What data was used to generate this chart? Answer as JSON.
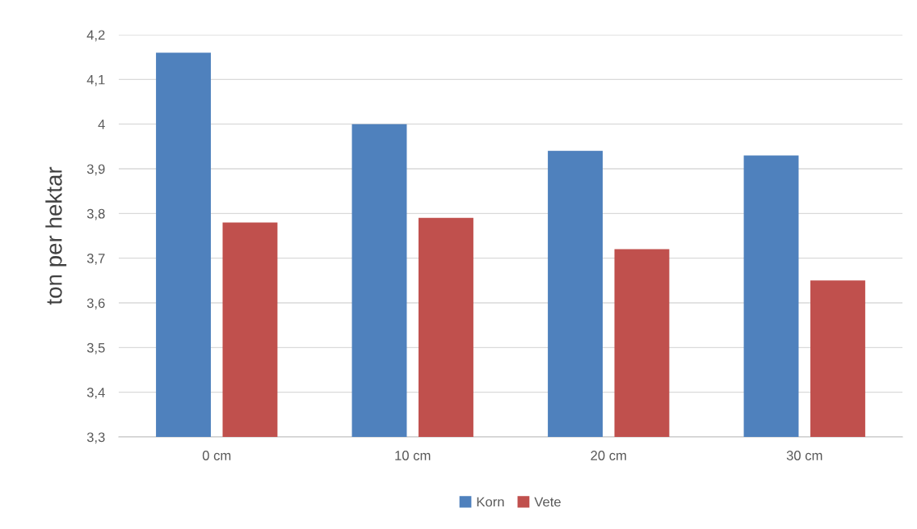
{
  "chart_data": {
    "type": "bar",
    "ylabel": "ton per hektar",
    "categories": [
      "0 cm",
      "10 cm",
      "20 cm",
      "30 cm"
    ],
    "series": [
      {
        "name": "Korn",
        "color": "#4f81bd",
        "values": [
          4.16,
          4.0,
          3.94,
          3.93
        ]
      },
      {
        "name": "Vete",
        "color": "#c0504d",
        "values": [
          3.78,
          3.79,
          3.72,
          3.65
        ]
      }
    ],
    "ylim": [
      3.3,
      4.2
    ],
    "yticks": [
      {
        "value": 3.3,
        "label": "3,3"
      },
      {
        "value": 3.4,
        "label": "3,4"
      },
      {
        "value": 3.5,
        "label": "3,5"
      },
      {
        "value": 3.6,
        "label": "3,6"
      },
      {
        "value": 3.7,
        "label": "3,7"
      },
      {
        "value": 3.8,
        "label": "3,8"
      },
      {
        "value": 3.9,
        "label": "3,9"
      },
      {
        "value": 4.0,
        "label": "4"
      },
      {
        "value": 4.1,
        "label": "4,1"
      },
      {
        "value": 4.2,
        "label": "4,2"
      }
    ],
    "grid": "y",
    "legend": "bottom"
  }
}
